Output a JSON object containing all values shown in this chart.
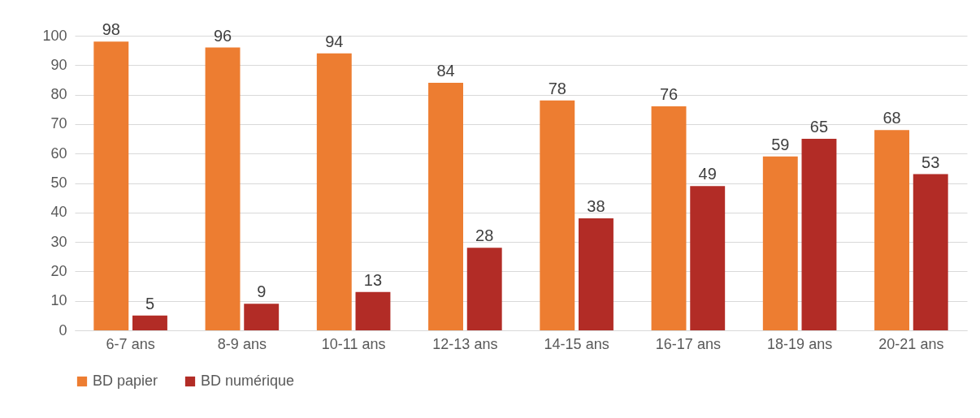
{
  "chart_data": {
    "type": "bar",
    "categories": [
      "6-7 ans",
      "8-9 ans",
      "10-11 ans",
      "12-13 ans",
      "14-15 ans",
      "16-17 ans",
      "18-19 ans",
      "20-21 ans"
    ],
    "series": [
      {
        "name": "BD papier",
        "color": "#ed7d31",
        "values": [
          98,
          96,
          94,
          84,
          78,
          76,
          59,
          68
        ]
      },
      {
        "name": "BD numérique",
        "color": "#b22c26",
        "values": [
          5,
          9,
          13,
          28,
          38,
          49,
          65,
          53
        ]
      }
    ],
    "ylim": [
      0,
      100
    ],
    "yticks": [
      0,
      10,
      20,
      30,
      40,
      50,
      60,
      70,
      80,
      90,
      100
    ],
    "grid": "y",
    "legend": "bottom",
    "data_labels": true
  }
}
